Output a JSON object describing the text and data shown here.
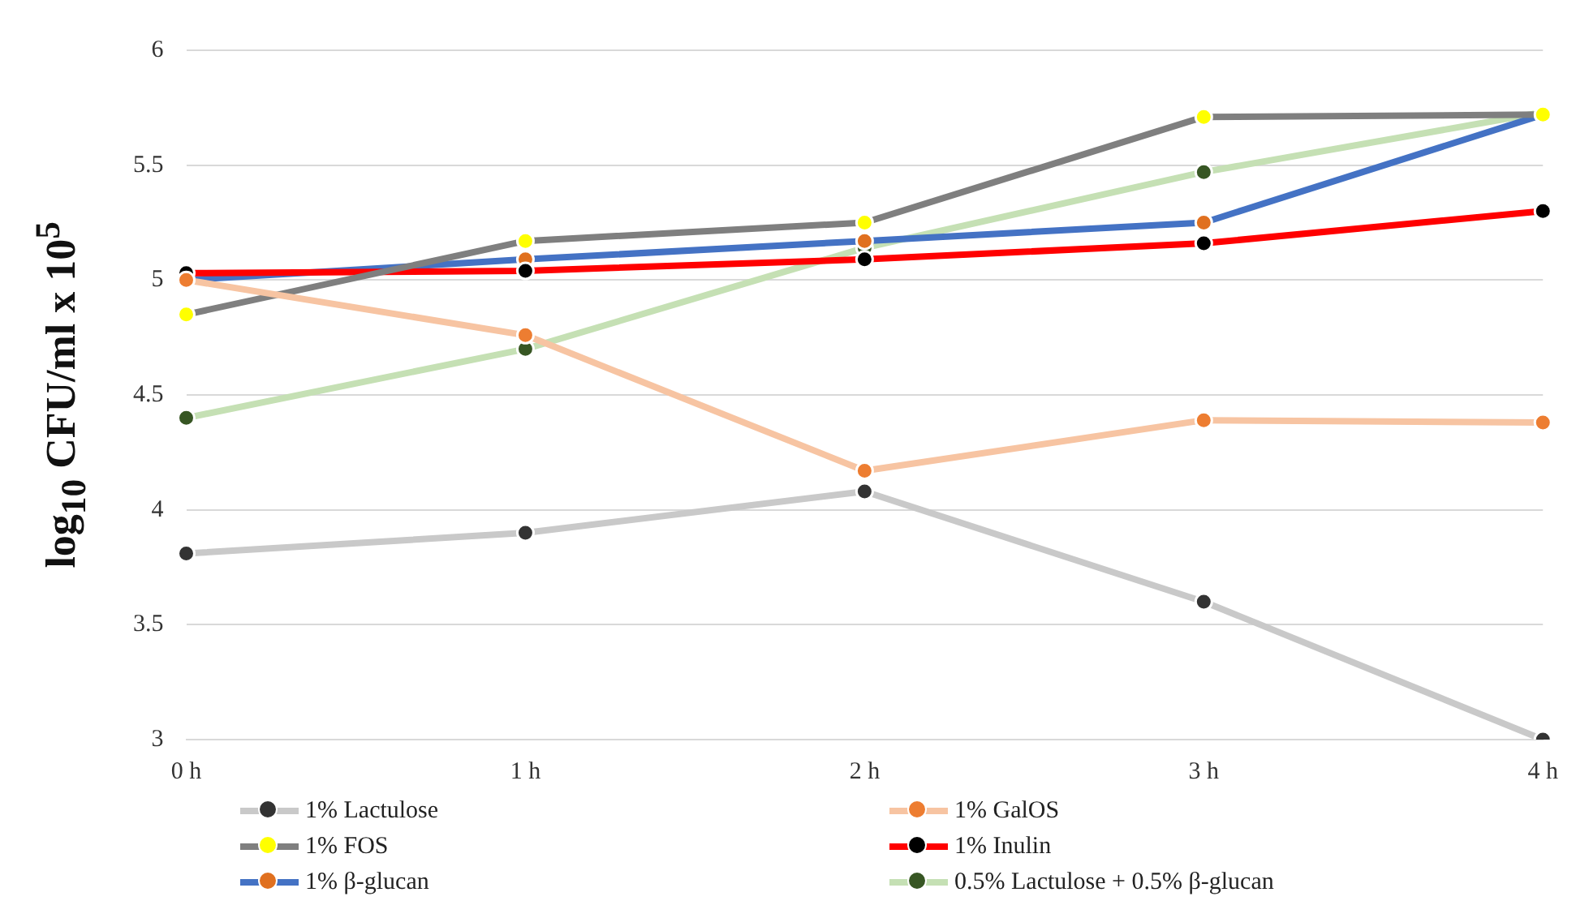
{
  "chart_data": {
    "type": "line",
    "ylabel": "log$_{10}$  CFU/ml x 10$^{5}$",
    "categories": [
      "0 h",
      "1 h",
      "2 h",
      "3 h",
      "4 h"
    ],
    "series": [
      {
        "name": "1% Lactulose",
        "color": "#c9c9c9",
        "colors": [
          "#333333",
          "#333333",
          "#333333",
          "#333333",
          "#333333"
        ],
        "values": [
          3.81,
          3.9,
          4.08,
          3.6,
          3.0
        ]
      },
      {
        "name": "1% GalOS",
        "color": "#f7c4a2",
        "colors": [
          "#ed7d31",
          "#ed7d31",
          "#ed7d31",
          "#ed7d31",
          "#ed7d31"
        ],
        "values": [
          5.0,
          4.76,
          4.17,
          4.39,
          4.38
        ]
      },
      {
        "name": "1% FOS",
        "color": "#7f7f7f",
        "colors": [
          "#ffff00",
          "#ffff00",
          "#ffff00",
          "#ffff00",
          "#ffff00"
        ],
        "values": [
          4.85,
          5.17,
          5.25,
          5.71,
          5.72
        ]
      },
      {
        "name": "1% Inulin",
        "color": "#ff0000",
        "colors": [
          "#000000",
          "#000000",
          "#000000",
          "#000000",
          "#000000"
        ],
        "values": [
          5.03,
          5.04,
          5.09,
          5.16,
          5.3
        ]
      },
      {
        "name": "1% β-glucan",
        "color": "#4472c4",
        "colors": [
          "#e0701f",
          "#e0701f",
          "#e0701f",
          "#e0701f",
          "#e0701f"
        ],
        "values": [
          5.0,
          5.09,
          5.17,
          5.25,
          5.72
        ]
      },
      {
        "name": "0.5% Lactulose + 0.5% β-glucan",
        "color": "#c5e0b4",
        "colors": [
          "#375623",
          "#375623",
          "#375623",
          "#375623",
          "#375623"
        ],
        "values": [
          4.4,
          4.7,
          5.14,
          5.47,
          5.73
        ]
      }
    ],
    "ylim": [
      3,
      6
    ],
    "yticks": [
      3,
      3.5,
      4,
      4.5,
      5,
      5.5,
      6
    ],
    "grid": "y",
    "legend": "bottom",
    "marker": "circle",
    "line_style": "solid"
  }
}
